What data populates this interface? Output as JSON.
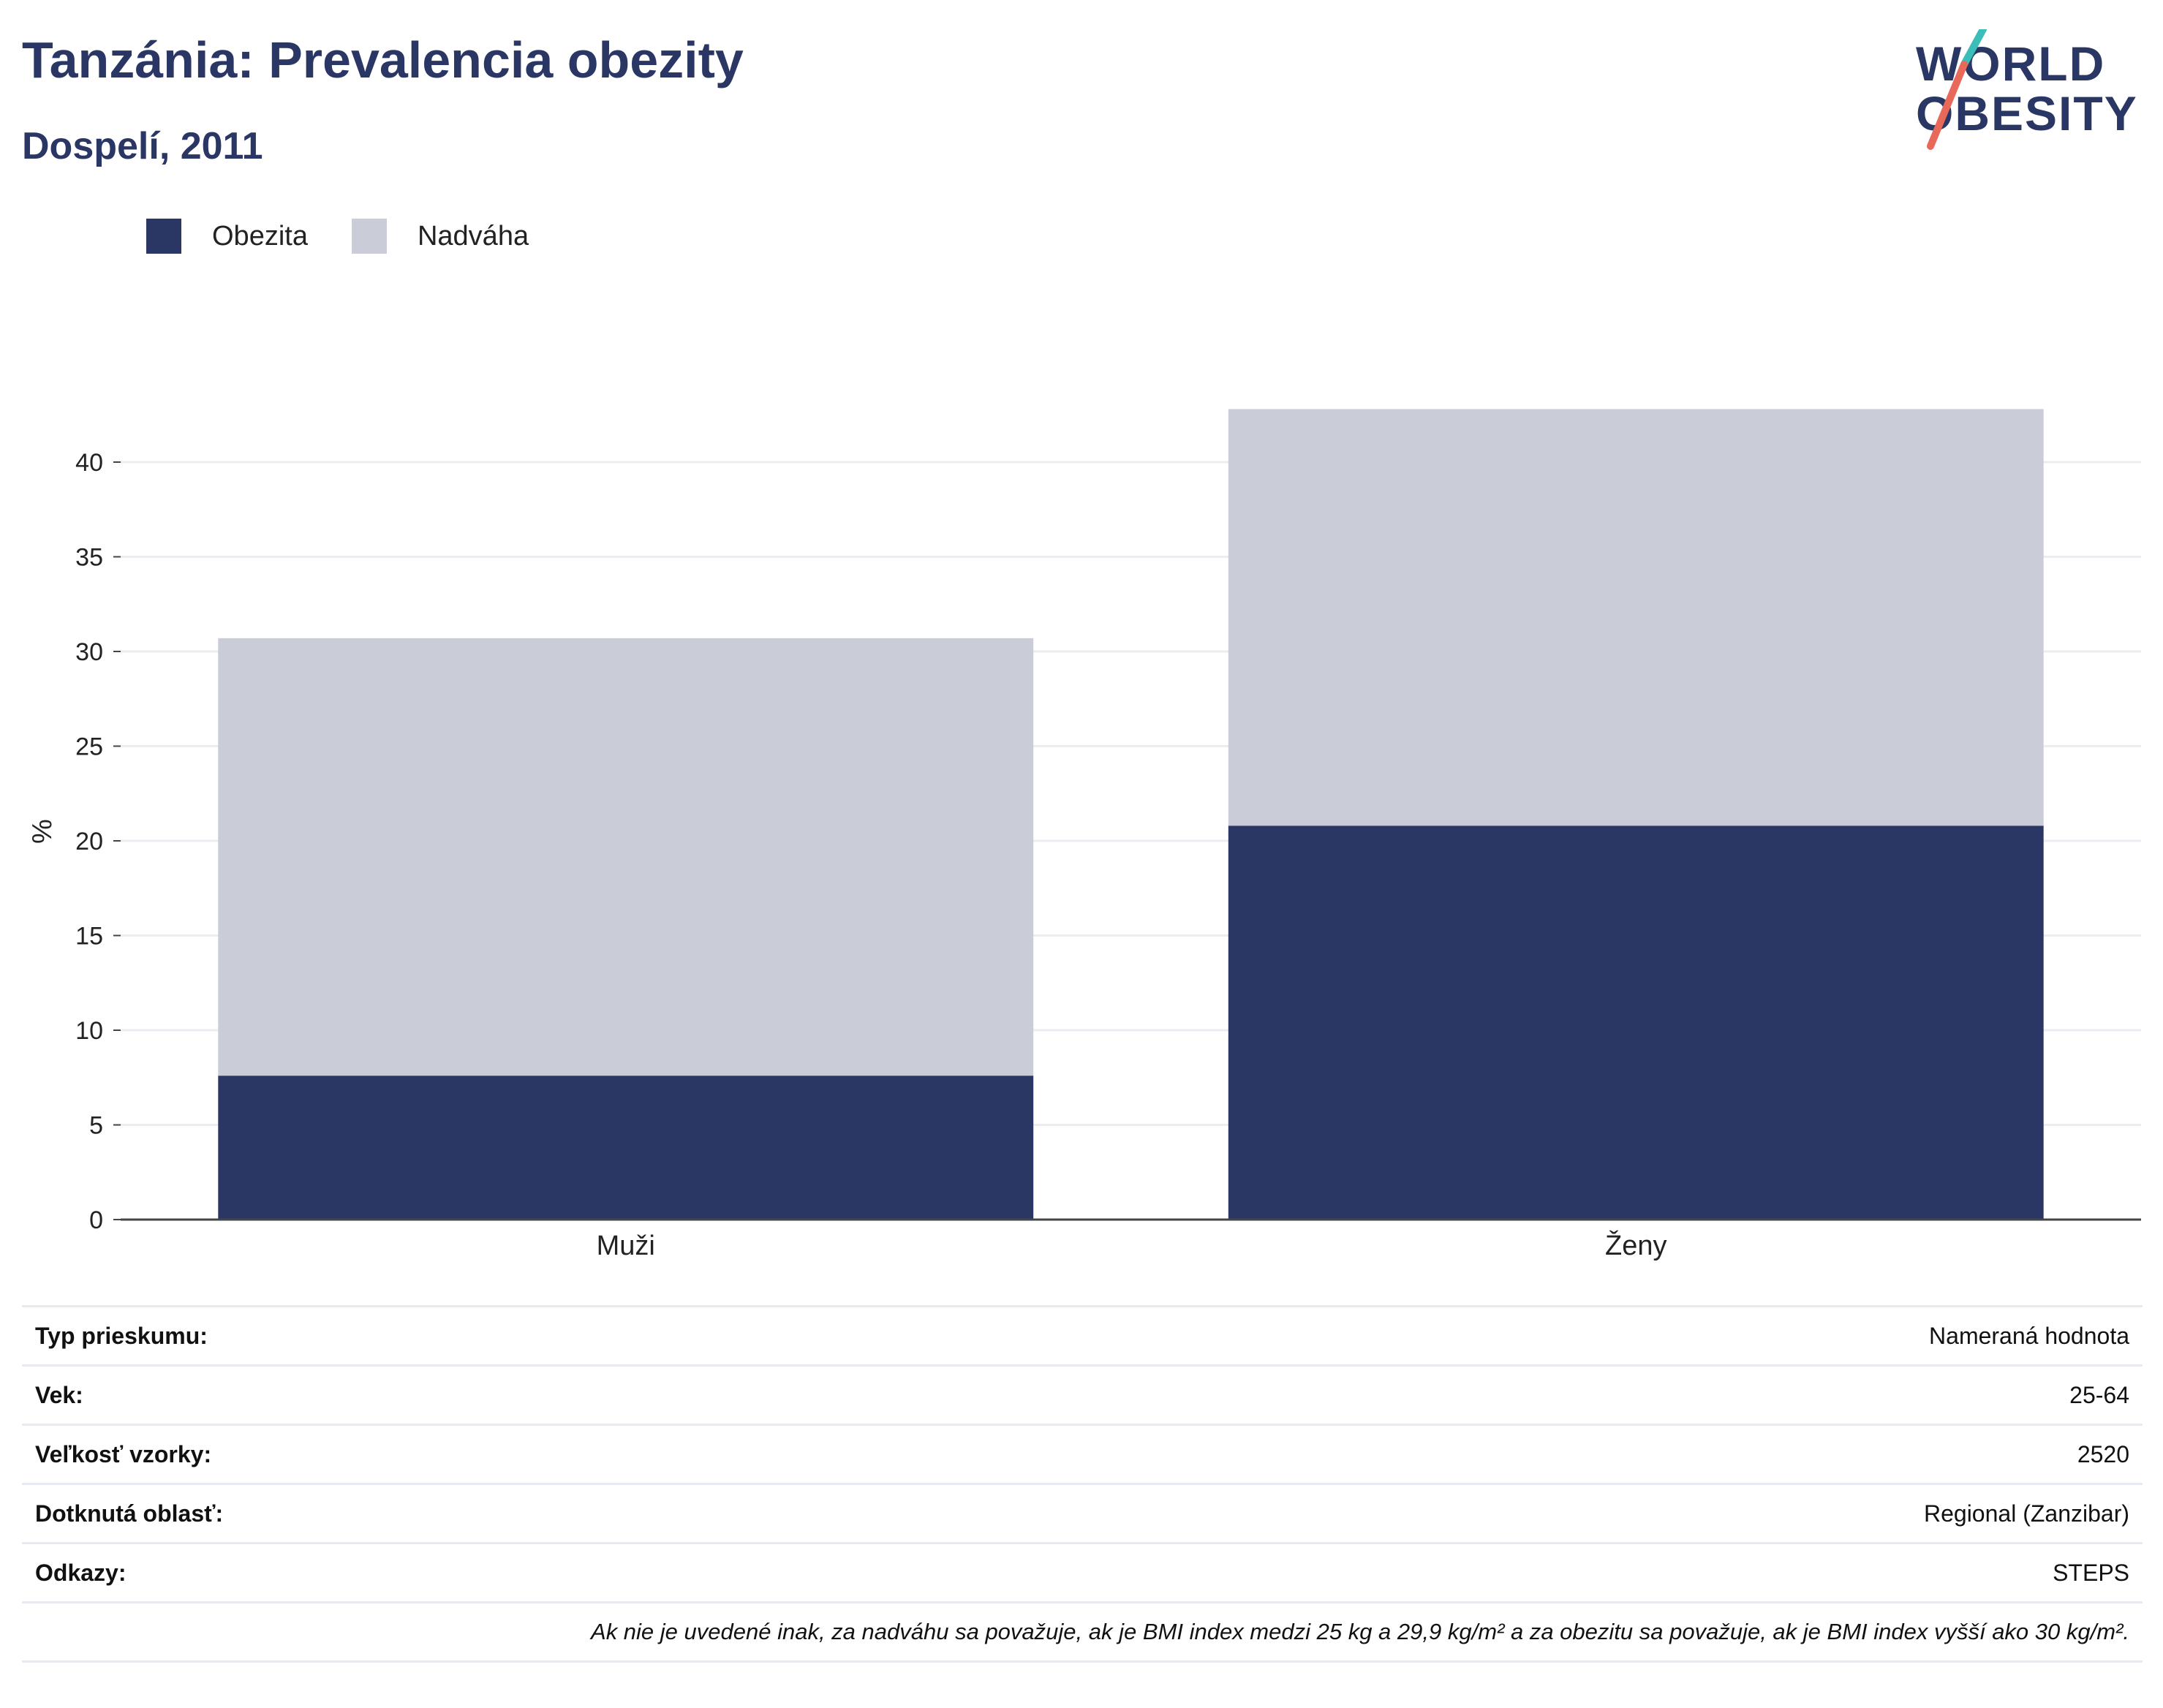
{
  "title": "Tanzánia: Prevalencia obezity",
  "subtitle": "Dospelí, 2011",
  "logo": {
    "line1": "WORLD",
    "line2": "OBESITY",
    "colors": {
      "text": "#2a3664",
      "slash_top": "#3bbdb9",
      "slash_bottom": "#e8685a"
    }
  },
  "legend": [
    {
      "label": "Obezita",
      "color": "#2a3664"
    },
    {
      "label": "Nadváha",
      "color": "#cacdd8"
    }
  ],
  "chart_data": {
    "type": "bar",
    "stacked": true,
    "categories": [
      "Muži",
      "Ženy"
    ],
    "series": [
      {
        "name": "Obezita",
        "values": [
          7.6,
          20.8
        ],
        "color": "#2a3664"
      },
      {
        "name": "Nadváha",
        "values": [
          23.1,
          22.0
        ],
        "color": "#cacdd8"
      }
    ],
    "ylabel": "%",
    "ylim": [
      0,
      45
    ],
    "yticks": [
      0,
      5,
      10,
      15,
      20,
      25,
      30,
      35,
      40
    ],
    "grid": true,
    "legend_position": "top-left"
  },
  "info": [
    {
      "key": "Typ prieskumu:",
      "value": "Nameraná hodnota"
    },
    {
      "key": "Vek:",
      "value": "25-64"
    },
    {
      "key": "Veľkosť vzorky:",
      "value": "2520"
    },
    {
      "key": "Dotknutá oblasť:",
      "value": "Regional (Zanzibar)"
    },
    {
      "key": "Odkazy:",
      "value": "STEPS"
    }
  ],
  "note": "Ak nie je uvedené inak, za nadváhu sa považuje, ak je BMI index medzi 25 kg a 29,9 kg/m² a za obezitu sa považuje, ak je BMI index vyšší ako 30 kg/m²."
}
